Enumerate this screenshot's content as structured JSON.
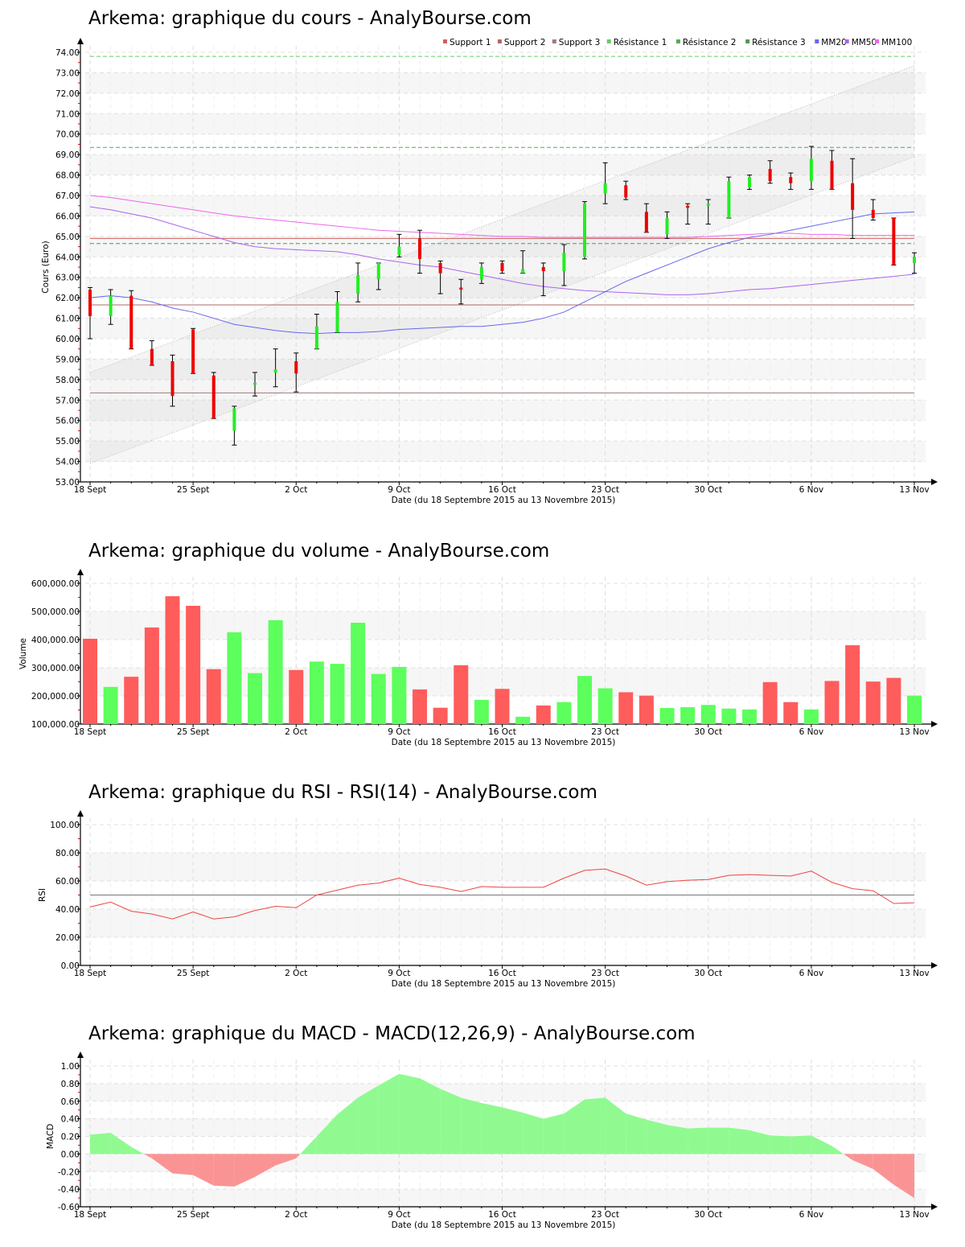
{
  "titles": {
    "price": "Arkema: graphique du cours - AnalyBourse.com",
    "volume": "Arkema: graphique du volume - AnalyBourse.com",
    "rsi": "Arkema: graphique du RSI - RSI(14) - AnalyBourse.com",
    "macd": "Arkema: graphique du MACD - MACD(12,26,9) - AnalyBourse.com"
  },
  "x_axis": {
    "label": "Date (du 18 Septembre 2015 au 13 Novembre 2015)",
    "ticks": [
      "18 Sept",
      "25 Sept",
      "2 Oct",
      "9 Oct",
      "16 Oct",
      "23 Oct",
      "30 Oct",
      "6 Nov",
      "13 Nov"
    ],
    "tick_indices": [
      0,
      5,
      10,
      15,
      20,
      25,
      30,
      35,
      40
    ]
  },
  "colors": {
    "up": "#22ee22",
    "down": "#ee0000",
    "vol_up": "#5cff5c",
    "vol_down": "#ff5c5c",
    "support1": "#d06060",
    "support2": "#b06868",
    "support3": "#a07878",
    "resistance1": "#66cc66",
    "resistance2": "#55aa55",
    "resistance3": "#559955",
    "mm20": "#6666ee",
    "mm50": "#aa66ee",
    "mm100": "#ee66ee",
    "rsi_line": "#ee4444",
    "macd_pos": "#90fa90",
    "macd_neg": "#fa9494"
  },
  "chart_data": [
    {
      "type": "candlestick",
      "title": "Arkema: graphique du cours - AnalyBourse.com",
      "xlabel": "Date (du 18 Septembre 2015 au 13 Novembre 2015)",
      "ylabel": "Cours (Euro)",
      "ylim": [
        53,
        74
      ],
      "yticks": [
        "53.00",
        "54.00",
        "55.00",
        "56.00",
        "57.00",
        "58.00",
        "59.00",
        "60.00",
        "61.00",
        "62.00",
        "63.00",
        "64.00",
        "65.00",
        "66.00",
        "67.00",
        "68.00",
        "69.00",
        "70.00",
        "71.00",
        "72.00",
        "73.00",
        "74.00"
      ],
      "legend": [
        "Support 1",
        "Support 2",
        "Support 3",
        "Résistance 1",
        "Résistance 2",
        "Résistance 3",
        "MM20",
        "MM50",
        "MM100"
      ],
      "candles": [
        {
          "o": 62.4,
          "h": 62.5,
          "l": 60.0,
          "c": 61.1
        },
        {
          "o": 61.1,
          "h": 62.4,
          "l": 60.7,
          "c": 62.1
        },
        {
          "o": 62.1,
          "h": 62.35,
          "l": 59.5,
          "c": 59.5
        },
        {
          "o": 59.5,
          "h": 59.9,
          "l": 58.7,
          "c": 58.7
        },
        {
          "o": 58.9,
          "h": 59.2,
          "l": 56.7,
          "c": 57.2
        },
        {
          "o": 60.45,
          "h": 60.5,
          "l": 58.3,
          "c": 58.3
        },
        {
          "o": 58.2,
          "h": 58.35,
          "l": 56.1,
          "c": 56.1
        },
        {
          "o": 55.5,
          "h": 56.7,
          "l": 54.8,
          "c": 56.6
        },
        {
          "o": 57.75,
          "h": 58.35,
          "l": 57.2,
          "c": 57.85
        },
        {
          "o": 58.35,
          "h": 59.5,
          "l": 57.65,
          "c": 58.5
        },
        {
          "o": 58.9,
          "h": 59.3,
          "l": 57.4,
          "c": 58.3
        },
        {
          "o": 59.5,
          "h": 61.2,
          "l": 59.5,
          "c": 60.6
        },
        {
          "o": 60.3,
          "h": 62.3,
          "l": 60.3,
          "c": 61.8
        },
        {
          "o": 62.2,
          "h": 63.7,
          "l": 61.8,
          "c": 63.1
        },
        {
          "o": 62.9,
          "h": 63.7,
          "l": 62.4,
          "c": 63.7
        },
        {
          "o": 64.1,
          "h": 65.1,
          "l": 64.0,
          "c": 64.5
        },
        {
          "o": 64.9,
          "h": 65.3,
          "l": 63.2,
          "c": 63.9
        },
        {
          "o": 63.7,
          "h": 63.8,
          "l": 62.2,
          "c": 63.2
        },
        {
          "o": 62.5,
          "h": 62.9,
          "l": 61.7,
          "c": 62.4
        },
        {
          "o": 62.9,
          "h": 63.7,
          "l": 62.7,
          "c": 63.5
        },
        {
          "o": 63.7,
          "h": 63.8,
          "l": 63.2,
          "c": 63.3
        },
        {
          "o": 63.2,
          "h": 64.3,
          "l": 63.2,
          "c": 63.4
        },
        {
          "o": 63.5,
          "h": 63.7,
          "l": 62.1,
          "c": 63.3
        },
        {
          "o": 63.3,
          "h": 64.6,
          "l": 62.6,
          "c": 64.2
        },
        {
          "o": 64.0,
          "h": 66.7,
          "l": 63.9,
          "c": 66.6
        },
        {
          "o": 67.1,
          "h": 68.6,
          "l": 66.6,
          "c": 67.6
        },
        {
          "o": 67.5,
          "h": 67.7,
          "l": 66.8,
          "c": 66.9
        },
        {
          "o": 66.2,
          "h": 66.6,
          "l": 65.2,
          "c": 65.2
        },
        {
          "o": 65.1,
          "h": 66.2,
          "l": 64.9,
          "c": 65.9
        },
        {
          "o": 66.5,
          "h": 66.6,
          "l": 65.6,
          "c": 66.4
        },
        {
          "o": 66.5,
          "h": 66.8,
          "l": 65.6,
          "c": 66.6
        },
        {
          "o": 65.9,
          "h": 67.9,
          "l": 65.9,
          "c": 67.7
        },
        {
          "o": 67.4,
          "h": 68.0,
          "l": 67.3,
          "c": 67.9
        },
        {
          "o": 68.3,
          "h": 68.7,
          "l": 67.6,
          "c": 67.7
        },
        {
          "o": 67.9,
          "h": 68.1,
          "l": 67.3,
          "c": 67.6
        },
        {
          "o": 67.7,
          "h": 69.4,
          "l": 67.3,
          "c": 68.8
        },
        {
          "o": 68.7,
          "h": 69.2,
          "l": 67.3,
          "c": 67.3
        },
        {
          "o": 67.6,
          "h": 68.8,
          "l": 64.9,
          "c": 66.3
        },
        {
          "o": 66.3,
          "h": 66.8,
          "l": 65.8,
          "c": 65.9
        },
        {
          "o": 65.9,
          "h": 65.9,
          "l": 63.6,
          "c": 63.6
        },
        {
          "o": 63.7,
          "h": 64.2,
          "l": 63.2,
          "c": 64.0
        }
      ],
      "levels": {
        "support1": 64.9,
        "support2": 61.65,
        "support3": 57.35,
        "resistance1": 73.8,
        "resistance2": 69.35,
        "resistance3": 64.65
      },
      "channel": {
        "upper": [
          58.35,
          73.35
        ],
        "lower": [
          53.9,
          68.9
        ]
      },
      "mm20": [
        62.0,
        62.1,
        62.0,
        61.8,
        61.5,
        61.3,
        61.0,
        60.7,
        60.55,
        60.4,
        60.3,
        60.25,
        60.3,
        60.3,
        60.35,
        60.45,
        60.5,
        60.55,
        60.6,
        60.6,
        60.7,
        60.8,
        61.0,
        61.3,
        61.8,
        62.3,
        62.8,
        63.2,
        63.6,
        64.0,
        64.4,
        64.7,
        64.95,
        65.1,
        65.3,
        65.5,
        65.7,
        65.9,
        66.1,
        66.15,
        66.2
      ],
      "mm50": [
        66.45,
        66.3,
        66.1,
        65.9,
        65.6,
        65.3,
        65.0,
        64.7,
        64.5,
        64.4,
        64.35,
        64.3,
        64.25,
        64.1,
        63.9,
        63.75,
        63.6,
        63.5,
        63.3,
        63.1,
        62.9,
        62.7,
        62.55,
        62.45,
        62.35,
        62.3,
        62.25,
        62.2,
        62.15,
        62.15,
        62.2,
        62.3,
        62.4,
        62.45,
        62.55,
        62.65,
        62.75,
        62.85,
        62.95,
        63.05,
        63.15
      ],
      "mm100": [
        67.0,
        66.9,
        66.75,
        66.6,
        66.45,
        66.3,
        66.15,
        66.0,
        65.9,
        65.8,
        65.7,
        65.6,
        65.5,
        65.4,
        65.3,
        65.25,
        65.2,
        65.15,
        65.1,
        65.05,
        65.0,
        65.0,
        64.95,
        64.95,
        64.95,
        64.95,
        64.95,
        64.95,
        64.95,
        64.95,
        65.0,
        65.05,
        65.1,
        65.15,
        65.15,
        65.1,
        65.1,
        65.05,
        65.05,
        65.05,
        65.05
      ]
    },
    {
      "type": "bar",
      "title": "Arkema: graphique du volume - AnalyBourse.com",
      "xlabel": "Date (du 18 Septembre 2015 au 13 Novembre 2015)",
      "ylabel": "Volume",
      "ylim": [
        100000,
        600000
      ],
      "yticks": [
        "100,000.00",
        "200,000.00",
        "300,000.00",
        "400,000.00",
        "500,000.00",
        "600,000.00"
      ],
      "values": [
        403000,
        232000,
        268000,
        443000,
        554000,
        520000,
        295000,
        426000,
        281000,
        469000,
        292000,
        322000,
        314000,
        460000,
        278000,
        303000,
        223000,
        158000,
        309000,
        186000,
        225000,
        126000,
        166000,
        178000,
        271000,
        227000,
        213000,
        201000,
        157000,
        160000,
        168000,
        155000,
        152000,
        249000,
        178000,
        152000,
        253000,
        380000,
        251000,
        264000,
        201000
      ],
      "up": [
        false,
        true,
        false,
        false,
        false,
        false,
        false,
        true,
        true,
        true,
        false,
        true,
        true,
        true,
        true,
        true,
        false,
        false,
        false,
        true,
        false,
        true,
        false,
        true,
        true,
        true,
        false,
        false,
        true,
        true,
        true,
        true,
        true,
        false,
        false,
        true,
        false,
        false,
        false,
        false,
        true
      ]
    },
    {
      "type": "line",
      "title": "Arkema: graphique du RSI - RSI(14) - AnalyBourse.com",
      "xlabel": "Date (du 18 Septembre 2015 au 13 Novembre 2015)",
      "ylabel": "RSI",
      "ylim": [
        0,
        100
      ],
      "yticks": [
        "0.00",
        "20.00",
        "40.00",
        "60.00",
        "80.00",
        "100.00"
      ],
      "reference_line": 50,
      "values": [
        41.5,
        45.0,
        38.5,
        36.5,
        33.0,
        38.0,
        33.0,
        34.5,
        39.0,
        42.0,
        41.0,
        50.0,
        53.5,
        57.0,
        58.5,
        62.0,
        57.5,
        55.5,
        52.5,
        56.0,
        55.5,
        55.5,
        55.5,
        62.0,
        67.5,
        68.5,
        63.5,
        57.0,
        59.5,
        60.5,
        61.0,
        64.0,
        64.5,
        64.0,
        63.5,
        67.0,
        59.0,
        54.5,
        53.0,
        44.0,
        44.5
      ]
    },
    {
      "type": "area",
      "title": "Arkema: graphique du MACD - MACD(12,26,9) - AnalyBourse.com",
      "xlabel": "Date (du 18 Septembre 2015 au 13 Novembre 2015)",
      "ylabel": "MACD",
      "ylim": [
        -0.6,
        1.0
      ],
      "yticks": [
        "-0.60",
        "-0.40",
        "-0.20",
        "0.00",
        "0.20",
        "0.40",
        "0.60",
        "0.80",
        "1.00"
      ],
      "values": [
        0.22,
        0.24,
        0.08,
        -0.05,
        -0.22,
        -0.24,
        -0.36,
        -0.37,
        -0.26,
        -0.13,
        -0.05,
        0.2,
        0.45,
        0.64,
        0.78,
        0.91,
        0.86,
        0.74,
        0.64,
        0.58,
        0.53,
        0.47,
        0.4,
        0.46,
        0.62,
        0.64,
        0.46,
        0.39,
        0.33,
        0.29,
        0.3,
        0.3,
        0.27,
        0.21,
        0.2,
        0.21,
        0.09,
        -0.07,
        -0.17,
        -0.35,
        -0.5
      ]
    }
  ]
}
